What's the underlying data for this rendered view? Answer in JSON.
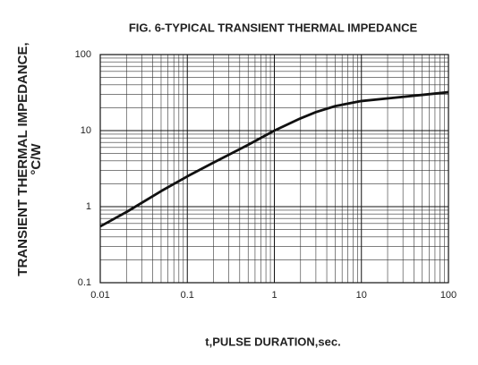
{
  "chart_data": {
    "type": "line",
    "title": "FIG. 6-TYPICAL TRANSIENT THERMAL IMPEDANCE",
    "x_label": "t,PULSE DURATION,sec.",
    "y_label": [
      "TRANSIENT THERMAL IMPEDANCE,",
      "°C/W"
    ],
    "x": [
      0.01,
      0.02,
      0.05,
      0.1,
      0.2,
      0.5,
      1,
      2,
      3,
      5,
      10,
      20,
      50,
      100
    ],
    "series": [
      {
        "name": "Transient thermal impedance",
        "color": "#111111",
        "values": [
          0.55,
          0.85,
          1.6,
          2.5,
          3.8,
          6.5,
          10,
          14.5,
          17.5,
          21,
          24.5,
          26.5,
          29.5,
          32
        ]
      }
    ],
    "xlim": [
      0.01,
      100
    ],
    "ylim": [
      0.1,
      100
    ],
    "xticks": [
      0.01,
      0.1,
      1,
      10,
      100
    ],
    "yticks": [
      0.1,
      1,
      10,
      100
    ],
    "xlog": true,
    "ylog": true,
    "grid": true,
    "minor_grid": true
  }
}
